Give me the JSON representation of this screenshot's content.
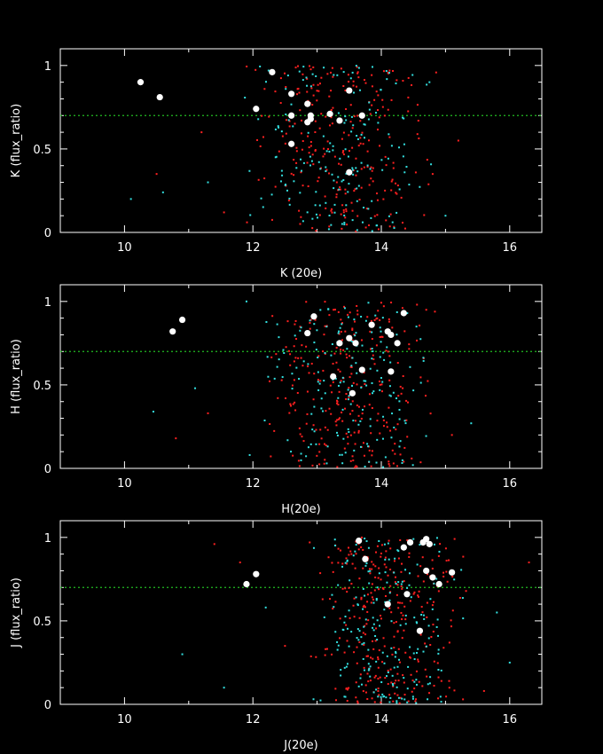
{
  "chart_data": [
    {
      "type": "scatter",
      "xlabel": "K (20e)",
      "ylabel": "K (flux_ratio)",
      "xlim": [
        9,
        16.5
      ],
      "ylim": [
        0,
        1.1
      ],
      "xticks": [
        "10",
        "12",
        "14",
        "16"
      ],
      "yticks": [
        "0",
        "0.5",
        "1"
      ],
      "reference_line": 0.7,
      "colors": {
        "frame": "#ffffff",
        "reference": "#22bb22",
        "series_a": "#ff2020",
        "series_b": "#33e0e0",
        "highlight": "#ffffff"
      },
      "highlight": [
        [
          10.25,
          0.9
        ],
        [
          10.55,
          0.81
        ],
        [
          12.05,
          0.74
        ],
        [
          12.3,
          0.96
        ],
        [
          12.6,
          0.83
        ],
        [
          12.6,
          0.7
        ],
        [
          12.6,
          0.53
        ],
        [
          12.85,
          0.77
        ],
        [
          12.85,
          0.66
        ],
        [
          12.9,
          0.7
        ],
        [
          12.9,
          0.68
        ],
        [
          13.2,
          0.71
        ],
        [
          13.35,
          0.67
        ],
        [
          13.5,
          0.85
        ],
        [
          13.5,
          0.36
        ],
        [
          13.7,
          0.7
        ]
      ],
      "cloud": {
        "x_range": [
          11.8,
          14.9
        ],
        "y_range": [
          0.0,
          1.0
        ],
        "count_a": 260,
        "count_b": 170,
        "seed": 11
      },
      "sparse": [
        [
          10.1,
          0.2
        ],
        [
          10.5,
          0.35
        ],
        [
          10.6,
          0.24
        ],
        [
          11.2,
          0.6
        ],
        [
          11.3,
          0.3
        ],
        [
          14.8,
          0.35
        ],
        [
          15.0,
          0.1
        ],
        [
          15.2,
          0.55
        ],
        [
          14.75,
          0.9
        ],
        [
          11.55,
          0.12
        ]
      ]
    },
    {
      "type": "scatter",
      "xlabel": "H(20e)",
      "ylabel": "H (flux_ratio)",
      "xlim": [
        9,
        16.5
      ],
      "ylim": [
        0,
        1.1
      ],
      "xticks": [
        "10",
        "12",
        "14",
        "16"
      ],
      "yticks": [
        "0",
        "0.5",
        "1"
      ],
      "reference_line": 0.7,
      "colors": {
        "frame": "#ffffff",
        "reference": "#22bb22",
        "series_a": "#ff2020",
        "series_b": "#33e0e0",
        "highlight": "#ffffff"
      },
      "highlight": [
        [
          10.75,
          0.82
        ],
        [
          10.9,
          0.89
        ],
        [
          12.85,
          0.81
        ],
        [
          12.95,
          0.91
        ],
        [
          13.25,
          0.55
        ],
        [
          13.35,
          0.75
        ],
        [
          13.5,
          0.78
        ],
        [
          13.55,
          0.45
        ],
        [
          13.6,
          0.75
        ],
        [
          13.7,
          0.59
        ],
        [
          13.85,
          0.86
        ],
        [
          14.1,
          0.82
        ],
        [
          14.15,
          0.8
        ],
        [
          14.15,
          0.58
        ],
        [
          14.25,
          0.75
        ],
        [
          14.35,
          0.93
        ]
      ],
      "cloud": {
        "x_range": [
          12.1,
          14.9
        ],
        "y_range": [
          0.0,
          1.0
        ],
        "count_a": 280,
        "count_b": 180,
        "seed": 23
      },
      "sparse": [
        [
          10.45,
          0.34
        ],
        [
          10.8,
          0.18
        ],
        [
          11.1,
          0.48
        ],
        [
          11.3,
          0.33
        ],
        [
          11.95,
          0.08
        ],
        [
          15.1,
          0.2
        ],
        [
          15.4,
          0.27
        ],
        [
          14.7,
          0.95
        ],
        [
          11.9,
          1.0
        ]
      ]
    },
    {
      "type": "scatter",
      "xlabel": "J(20e)",
      "ylabel": "J (flux_ratio)",
      "xlim": [
        9,
        16.5
      ],
      "ylim": [
        0,
        1.1
      ],
      "xticks": [
        "10",
        "12",
        "14",
        "16"
      ],
      "yticks": [
        "0",
        "0.5",
        "1"
      ],
      "reference_line": 0.7,
      "colors": {
        "frame": "#ffffff",
        "reference": "#22bb22",
        "series_a": "#ff2020",
        "series_b": "#33e0e0",
        "highlight": "#ffffff"
      },
      "highlight": [
        [
          11.9,
          0.72
        ],
        [
          12.05,
          0.78
        ],
        [
          13.65,
          0.98
        ],
        [
          13.75,
          0.87
        ],
        [
          14.1,
          0.6
        ],
        [
          14.35,
          0.94
        ],
        [
          14.4,
          0.66
        ],
        [
          14.45,
          0.97
        ],
        [
          14.6,
          0.44
        ],
        [
          14.65,
          0.97
        ],
        [
          14.7,
          0.99
        ],
        [
          14.7,
          0.8
        ],
        [
          14.75,
          0.96
        ],
        [
          14.8,
          0.76
        ],
        [
          14.9,
          0.72
        ],
        [
          15.1,
          0.79
        ]
      ],
      "cloud": {
        "x_range": [
          12.8,
          15.4
        ],
        "y_range": [
          0.0,
          1.0
        ],
        "count_a": 300,
        "count_b": 200,
        "seed": 37
      },
      "sparse": [
        [
          10.9,
          0.3
        ],
        [
          11.4,
          0.96
        ],
        [
          11.55,
          0.1
        ],
        [
          11.8,
          0.85
        ],
        [
          12.2,
          0.58
        ],
        [
          12.5,
          0.35
        ],
        [
          15.8,
          0.55
        ],
        [
          16.3,
          0.85
        ],
        [
          16.0,
          0.25
        ],
        [
          15.6,
          0.08
        ]
      ]
    }
  ]
}
